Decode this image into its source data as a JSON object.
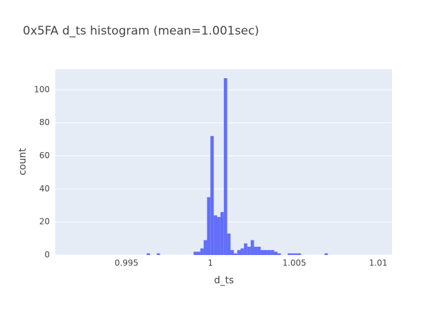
{
  "chart_data": {
    "type": "histogram",
    "title": "0x5FA d_ts histogram (mean=1.001sec)",
    "x_label": "d_ts",
    "y_label": "count",
    "color": "#636efa",
    "bins": [
      0.9962,
      0.9964,
      0.9966,
      0.9968,
      0.997,
      0.9972,
      0.9974,
      0.9976,
      0.9978,
      0.998,
      0.9982,
      0.9984,
      0.9986,
      0.9988,
      0.999,
      0.9992,
      0.9994,
      0.9996,
      0.9998,
      1.0,
      1.0002,
      1.0004,
      1.0006,
      1.0008,
      1.001,
      1.0012,
      1.0014,
      1.0016,
      1.0018,
      1.002,
      1.0022,
      1.0024,
      1.0026,
      1.0028,
      1.003,
      1.0032,
      1.0034,
      1.0036,
      1.0038,
      1.004,
      1.0042,
      1.0044,
      1.0046,
      1.0048,
      1.005,
      1.0052,
      1.0054,
      1.0056,
      1.0058,
      1.006,
      1.0062,
      1.0064,
      1.0066,
      1.0068,
      1.007
    ],
    "counts": [
      1,
      0,
      0,
      1,
      0,
      0,
      0,
      0,
      0,
      0,
      0,
      0,
      0,
      0,
      2,
      2,
      4,
      9,
      35,
      72,
      24,
      23,
      26,
      107,
      13,
      3,
      1,
      3,
      4,
      7,
      5,
      9,
      5,
      5,
      3,
      3,
      3,
      3,
      2,
      1,
      0,
      0,
      1,
      1,
      1,
      1,
      0,
      0,
      0,
      0,
      0,
      0,
      0,
      1
    ],
    "xlim": [
      0.99076,
      1.01082
    ],
    "xticks": [
      0.995,
      1,
      1.005,
      1.01
    ],
    "ylim": [
      0,
      112.5
    ],
    "yticks": [
      0,
      20,
      40,
      60,
      80,
      100
    ],
    "grid": true
  }
}
